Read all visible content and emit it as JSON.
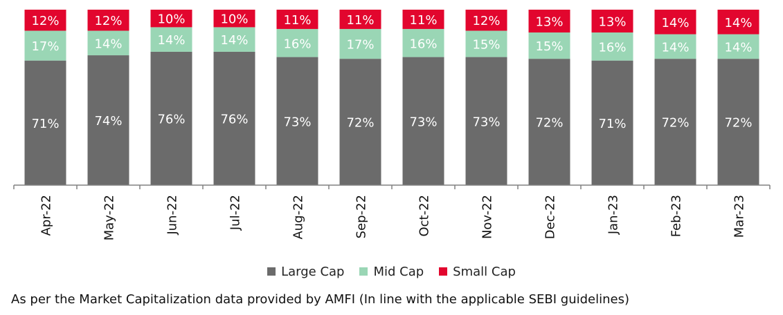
{
  "chart_data": {
    "type": "bar",
    "stacked": true,
    "normalized_percent": true,
    "categories": [
      "Apr-22",
      "May-22",
      "Jun-22",
      "Jul-22",
      "Aug-22",
      "Sep-22",
      "Oct-22",
      "Nov-22",
      "Dec-22",
      "Jan-23",
      "Feb-23",
      "Mar-23"
    ],
    "series": [
      {
        "name": "Large Cap",
        "color": "#6b6b6b",
        "values": [
          71,
          74,
          76,
          76,
          73,
          72,
          73,
          73,
          72,
          71,
          72,
          72
        ]
      },
      {
        "name": "Mid Cap",
        "color": "#9ad6b5",
        "values": [
          17,
          14,
          14,
          14,
          16,
          17,
          16,
          15,
          15,
          16,
          14,
          14
        ]
      },
      {
        "name": "Small Cap",
        "color": "#e2062e",
        "values": [
          12,
          12,
          10,
          10,
          11,
          11,
          11,
          12,
          13,
          13,
          14,
          14
        ]
      }
    ],
    "legend_position": "bottom-center",
    "grid": false
  },
  "footnote": "As per the Market Capitalization data provided by AMFI (In line with the applicable SEBI guidelines)"
}
